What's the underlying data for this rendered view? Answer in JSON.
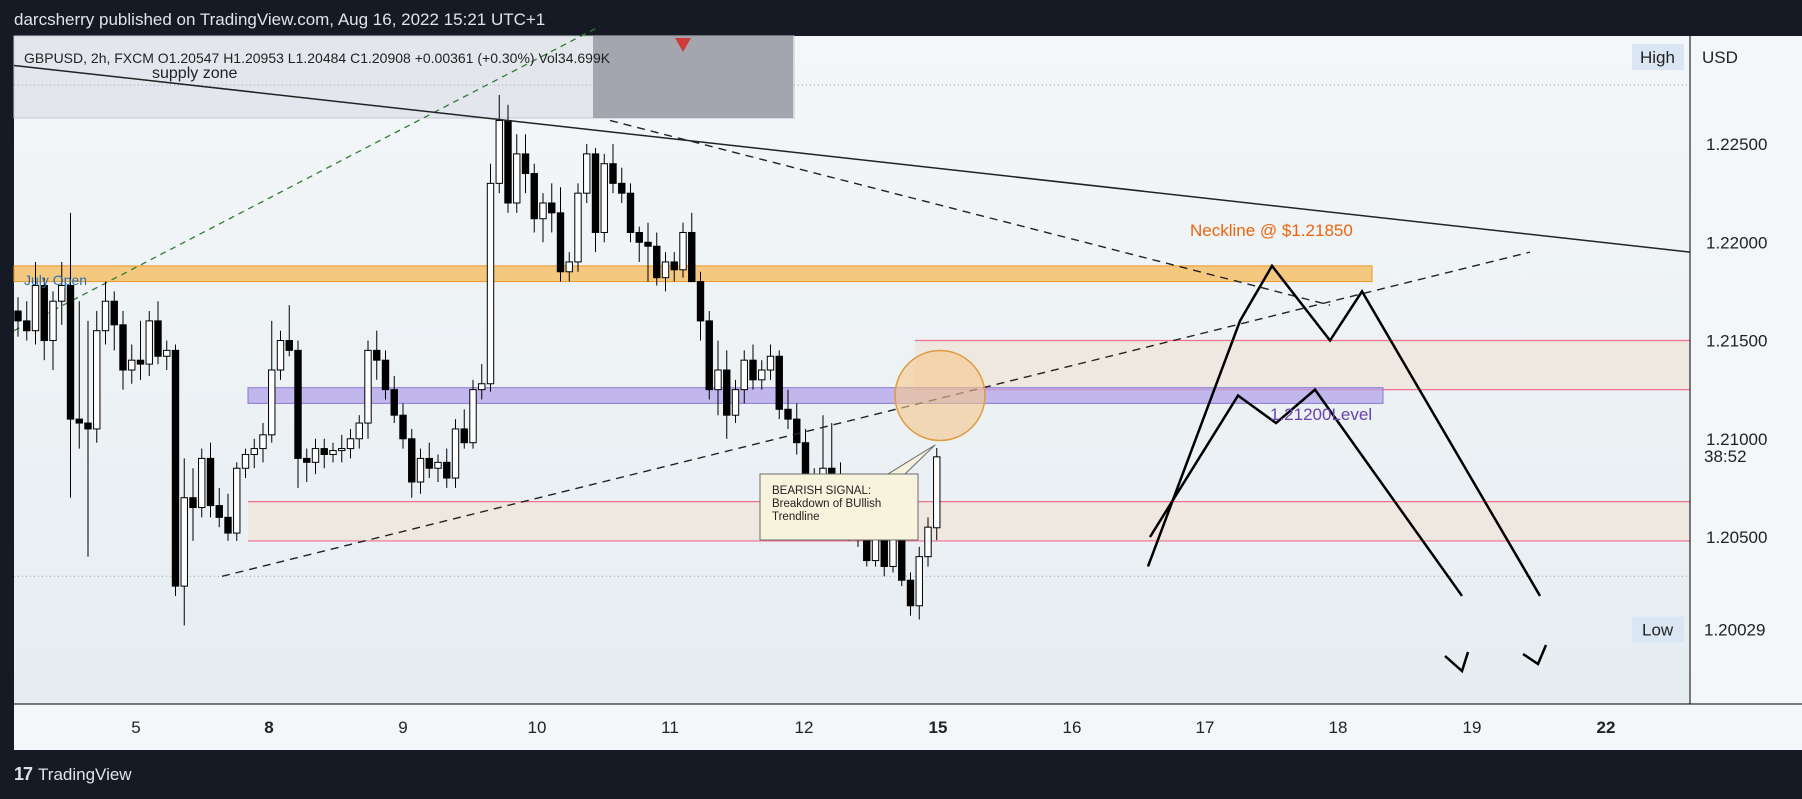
{
  "header": {
    "publisher": "darcsherry published on TradingView.com, Aug 16, 2022 15:21 UTC+1"
  },
  "footer": {
    "brand": "TradingView"
  },
  "legend": {
    "symbol": "GBPUSD, 2h, FXCM",
    "open": "O1.20547",
    "high": "H1.20953",
    "low": "L1.20484",
    "close": "C1.20908",
    "change": "+0.00361 (+0.30%)",
    "volume": "Vol34.699K"
  },
  "colors": {
    "background": "#161a25",
    "chart_bg": "#eef2f5",
    "bull": "#ffffff",
    "bear": "#000000",
    "neckline": "#e8650e",
    "level": "#6a40b0",
    "zone_orange": "#f7b041",
    "pink": "#f07090"
  },
  "chart_data": {
    "type": "candlestick",
    "title": "GBPUSD, 2h, FXCM",
    "ylabel": "USD",
    "ylim": [
      1.1965,
      1.2305
    ],
    "yticks": [
      "1.22500",
      "1.22000",
      "1.21500",
      "1.21000",
      "1.20500"
    ],
    "xticks": [
      "5",
      "8",
      "9",
      "10",
      "11",
      "12",
      "15",
      "16",
      "17",
      "18",
      "19",
      "22"
    ],
    "axis_labels": {
      "currency": "USD",
      "high_label": "High",
      "low_label": "Low",
      "low_value": "1.20029",
      "countdown": "38:52"
    },
    "candles": [
      [
        1.2165,
        1.2172,
        1.2152,
        1.216
      ],
      [
        1.216,
        1.217,
        1.215,
        1.2155
      ],
      [
        1.2155,
        1.219,
        1.2148,
        1.2178
      ],
      [
        1.2178,
        1.2182,
        1.214,
        1.215
      ],
      [
        1.215,
        1.2175,
        1.2135,
        1.217
      ],
      [
        1.217,
        1.219,
        1.2158,
        1.2178
      ],
      [
        1.2178,
        1.2215,
        1.207,
        1.211
      ],
      [
        1.211,
        1.217,
        1.2095,
        1.2108
      ],
      [
        1.2108,
        1.216,
        1.204,
        1.2105
      ],
      [
        1.2105,
        1.2165,
        1.2098,
        1.2155
      ],
      [
        1.2155,
        1.218,
        1.2148,
        1.217
      ],
      [
        1.217,
        1.2175,
        1.2145,
        1.2158
      ],
      [
        1.2158,
        1.2165,
        1.2125,
        1.2135
      ],
      [
        1.2135,
        1.2148,
        1.2128,
        1.214
      ],
      [
        1.214,
        1.216,
        1.213,
        1.2138
      ],
      [
        1.2138,
        1.2165,
        1.2132,
        1.216
      ],
      [
        1.216,
        1.217,
        1.2138,
        1.2142
      ],
      [
        1.2142,
        1.215,
        1.2135,
        1.2145
      ],
      [
        1.2145,
        1.2148,
        1.202,
        1.2025
      ],
      [
        1.2025,
        1.209,
        1.2005,
        1.207
      ],
      [
        1.207,
        1.2085,
        1.2048,
        1.2065
      ],
      [
        1.2065,
        1.2095,
        1.206,
        1.209
      ],
      [
        1.209,
        1.2098,
        1.206,
        1.2066
      ],
      [
        1.2066,
        1.2075,
        1.2055,
        1.206
      ],
      [
        1.206,
        1.2072,
        1.2048,
        1.2052
      ],
      [
        1.2052,
        1.2088,
        1.2048,
        1.2085
      ],
      [
        1.2085,
        1.2095,
        1.208,
        1.2092
      ],
      [
        1.2092,
        1.21,
        1.2085,
        1.2095
      ],
      [
        1.2095,
        1.2108,
        1.2088,
        1.2102
      ],
      [
        1.2102,
        1.216,
        1.2098,
        1.2135
      ],
      [
        1.2135,
        1.2155,
        1.213,
        1.215
      ],
      [
        1.215,
        1.2168,
        1.2142,
        1.2145
      ],
      [
        1.2145,
        1.215,
        1.2075,
        1.209
      ],
      [
        1.209,
        1.2095,
        1.2078,
        1.2088
      ],
      [
        1.2088,
        1.21,
        1.2082,
        1.2095
      ],
      [
        1.2095,
        1.21,
        1.2085,
        1.2092
      ],
      [
        1.2092,
        1.2098,
        1.2088,
        1.2094
      ],
      [
        1.2094,
        1.2102,
        1.2088,
        1.2095
      ],
      [
        1.2095,
        1.2105,
        1.209,
        1.21
      ],
      [
        1.21,
        1.2112,
        1.2095,
        1.2108
      ],
      [
        1.2108,
        1.215,
        1.21,
        1.2145
      ],
      [
        1.2145,
        1.2155,
        1.213,
        1.214
      ],
      [
        1.214,
        1.2145,
        1.212,
        1.2125
      ],
      [
        1.2125,
        1.2132,
        1.2108,
        1.2112
      ],
      [
        1.2112,
        1.2118,
        1.2095,
        1.21
      ],
      [
        1.21,
        1.2105,
        1.207,
        1.2078
      ],
      [
        1.2078,
        1.2095,
        1.2072,
        1.209
      ],
      [
        1.209,
        1.2098,
        1.208,
        1.2085
      ],
      [
        1.2085,
        1.2092,
        1.2078,
        1.2088
      ],
      [
        1.2088,
        1.2095,
        1.2075,
        1.208
      ],
      [
        1.208,
        1.211,
        1.2075,
        1.2105
      ],
      [
        1.2105,
        1.2115,
        1.2095,
        1.2098
      ],
      [
        1.2098,
        1.213,
        1.2095,
        1.2125
      ],
      [
        1.2125,
        1.2138,
        1.212,
        1.2128
      ],
      [
        1.2128,
        1.224,
        1.2124,
        1.223
      ],
      [
        1.223,
        1.2275,
        1.2225,
        1.2262
      ],
      [
        1.2262,
        1.227,
        1.2215,
        1.222
      ],
      [
        1.222,
        1.2255,
        1.2215,
        1.2245
      ],
      [
        1.2245,
        1.2255,
        1.2225,
        1.2235
      ],
      [
        1.2235,
        1.224,
        1.2205,
        1.2212
      ],
      [
        1.2212,
        1.2225,
        1.22,
        1.222
      ],
      [
        1.222,
        1.223,
        1.2205,
        1.2215
      ],
      [
        1.2215,
        1.2228,
        1.218,
        1.2185
      ],
      [
        1.2185,
        1.2195,
        1.218,
        1.219
      ],
      [
        1.219,
        1.223,
        1.2185,
        1.2225
      ],
      [
        1.2225,
        1.225,
        1.222,
        1.2245
      ],
      [
        1.2245,
        1.2248,
        1.2195,
        1.2205
      ],
      [
        1.2205,
        1.2245,
        1.22,
        1.224
      ],
      [
        1.224,
        1.225,
        1.2225,
        1.223
      ],
      [
        1.223,
        1.2238,
        1.222,
        1.2225
      ],
      [
        1.2225,
        1.223,
        1.22,
        1.2205
      ],
      [
        1.2205,
        1.2208,
        1.219,
        1.22
      ],
      [
        1.22,
        1.221,
        1.218,
        1.2198
      ],
      [
        1.2198,
        1.2205,
        1.2178,
        1.2182
      ],
      [
        1.2182,
        1.2195,
        1.2175,
        1.219
      ],
      [
        1.219,
        1.2195,
        1.218,
        1.2186
      ],
      [
        1.2186,
        1.221,
        1.2182,
        1.2205
      ],
      [
        1.2205,
        1.2215,
        1.218,
        1.218
      ],
      [
        1.218,
        1.2185,
        1.215,
        1.216
      ],
      [
        1.216,
        1.2165,
        1.212,
        1.2125
      ],
      [
        1.2125,
        1.215,
        1.2112,
        1.2135
      ],
      [
        1.2135,
        1.2145,
        1.21,
        1.2112
      ],
      [
        1.2112,
        1.213,
        1.2108,
        1.2125
      ],
      [
        1.2125,
        1.2145,
        1.2118,
        1.214
      ],
      [
        1.214,
        1.2148,
        1.2125,
        1.213
      ],
      [
        1.213,
        1.214,
        1.2125,
        1.2135
      ],
      [
        1.2135,
        1.2148,
        1.213,
        1.2142
      ],
      [
        1.2142,
        1.2145,
        1.211,
        1.2115
      ],
      [
        1.2115,
        1.2125,
        1.2105,
        1.211
      ],
      [
        1.211,
        1.2118,
        1.2092,
        1.2098
      ],
      [
        1.2098,
        1.2105,
        1.2065,
        1.207
      ],
      [
        1.207,
        1.2085,
        1.205,
        1.208
      ],
      [
        1.208,
        1.2112,
        1.2075,
        1.2085
      ],
      [
        1.2085,
        1.2108,
        1.207,
        1.208
      ],
      [
        1.208,
        1.2088,
        1.205,
        1.2052
      ],
      [
        1.2052,
        1.2058,
        1.2048,
        1.2054
      ],
      [
        1.2054,
        1.206,
        1.2045,
        1.2052
      ],
      [
        1.2052,
        1.2056,
        1.2035,
        1.2038
      ],
      [
        1.2038,
        1.2058,
        1.2035,
        1.2055
      ],
      [
        1.2055,
        1.206,
        1.203,
        1.2035
      ],
      [
        1.2035,
        1.2058,
        1.2032,
        1.205
      ],
      [
        1.205,
        1.2055,
        1.2025,
        1.2028
      ],
      [
        1.2028,
        1.2032,
        1.201,
        1.2015
      ],
      [
        1.2015,
        1.2045,
        1.2008,
        1.204
      ],
      [
        1.204,
        1.206,
        1.2035,
        1.2055
      ],
      [
        1.20547,
        1.20953,
        1.20484,
        1.20908
      ]
    ],
    "annotations": {
      "supply_zone": "supply zone",
      "july_open": "July Open",
      "neckline": "Neckline @ $1.21850",
      "level": "1.21200Level",
      "signal_box": [
        "BEARISH SIGNAL:",
        "Breakdown of BUllish",
        "Trendline"
      ]
    },
    "levels": {
      "neckline": 1.2185,
      "level": 1.212,
      "resistance_box": [
        1.2125,
        1.215
      ],
      "support_box": [
        1.2048,
        1.2068
      ],
      "low": 1.20029,
      "high_current": 1.20908
    }
  }
}
